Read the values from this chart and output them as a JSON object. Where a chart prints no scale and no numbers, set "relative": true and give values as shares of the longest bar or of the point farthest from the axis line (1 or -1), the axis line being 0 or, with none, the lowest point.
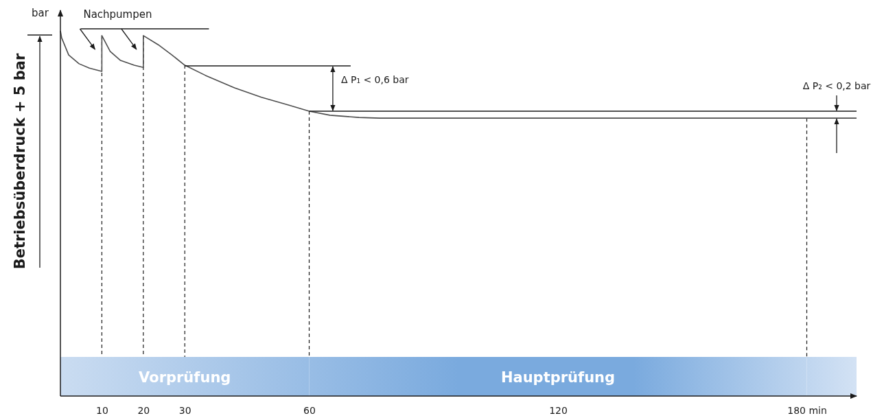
{
  "chart_data": {
    "type": "line",
    "relative": true,
    "ylabel": "Betriebsüberdruck + 5 bar",
    "xlim": [
      0,
      192
    ],
    "xticks": [
      10,
      20,
      30,
      60,
      120,
      {
        "value": 180,
        "label": "180 min"
      }
    ],
    "series": [
      {
        "color": "#4d4d4d",
        "x": [
          0,
          0.3,
          2,
          4.5,
          7,
          10,
          10,
          12,
          14.5,
          17.8,
          20,
          20,
          23.6,
          26.9,
          30,
          35,
          42,
          48.5,
          55,
          60,
          65,
          72,
          77,
          192
        ],
        "values": [
          1.0,
          0.981,
          0.934,
          0.91,
          0.898,
          0.889,
          0.987,
          0.944,
          0.919,
          0.906,
          0.9,
          0.987,
          0.962,
          0.934,
          0.906,
          0.878,
          0.844,
          0.818,
          0.797,
          0.78,
          0.769,
          0.763,
          0.761,
          0.761
        ]
      },
      {
        "color": "#1a1a1a",
        "x": [
          30,
          70
        ],
        "values": [
          0.904,
          0.904
        ]
      },
      {
        "color": "#1a1a1a",
        "x": [
          60,
          192
        ],
        "values": [
          0.78,
          0.78
        ]
      }
    ],
    "ref_lines": [
      {
        "axis": "x",
        "value": 10,
        "line_style": "dashed",
        "color": "#1a1a1a"
      },
      {
        "axis": "x",
        "value": 20,
        "line_style": "dashed",
        "color": "#1a1a1a"
      },
      {
        "axis": "x",
        "value": 30,
        "line_style": "dashed",
        "color": "#1a1a1a"
      },
      {
        "axis": "x",
        "value": 60,
        "line_style": "dashed",
        "color": "#1a1a1a"
      },
      {
        "axis": "x",
        "value": 180,
        "line_style": "dashed",
        "color": "#1a1a1a"
      }
    ],
    "bands": [
      {
        "axis": "x",
        "from": 0,
        "to": 60,
        "label": "Vorprüfung",
        "color": "#7aaade"
      },
      {
        "axis": "x",
        "from": 60,
        "to": 180,
        "label": "Hauptprüfung",
        "color": "#7aaade"
      },
      {
        "axis": "x",
        "from": 180,
        "to": 192,
        "color": "#7aaade"
      }
    ],
    "annotations": [
      "bar",
      "Nachpumpen",
      "Δ P₁ < 0,6 bar",
      "Δ P₂ < 0,2 bar"
    ],
    "marker": "none",
    "line_style": "solid"
  }
}
